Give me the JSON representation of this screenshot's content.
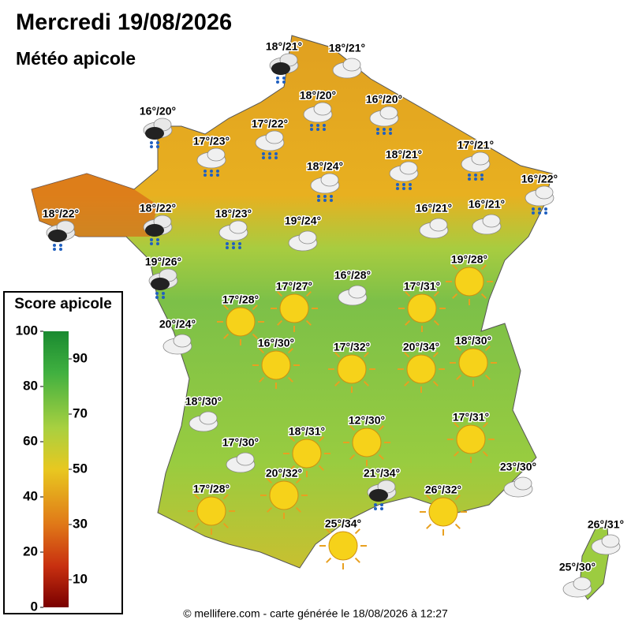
{
  "header": {
    "title": "Mercredi 19/08/2026",
    "subtitle": "Météo apicole"
  },
  "legend": {
    "title": "Score apicole",
    "ticks": [
      0,
      10,
      20,
      30,
      40,
      50,
      60,
      70,
      80,
      90,
      100
    ]
  },
  "stations": [
    {
      "label": "18°/21°",
      "icon": "storm"
    },
    {
      "label": "18°/21°",
      "icon": "cloud"
    },
    {
      "label": "18°/20°",
      "icon": "rain"
    },
    {
      "label": "16°/20°",
      "icon": "rain"
    },
    {
      "label": "16°/20°",
      "icon": "storm"
    },
    {
      "label": "17°/22°",
      "icon": "rain"
    },
    {
      "label": "17°/23°",
      "icon": "rain"
    },
    {
      "label": "17°/21°",
      "icon": "rain"
    },
    {
      "label": "18°/21°",
      "icon": "rain"
    },
    {
      "label": "18°/24°",
      "icon": "rain"
    },
    {
      "label": "16°/22°",
      "icon": "rain"
    },
    {
      "label": "18°/22°",
      "icon": "storm"
    },
    {
      "label": "18°/22°",
      "icon": "storm"
    },
    {
      "label": "18°/23°",
      "icon": "rain"
    },
    {
      "label": "19°/24°",
      "icon": "cloud"
    },
    {
      "label": "16°/21°",
      "icon": "cloud"
    },
    {
      "label": "16°/21°",
      "icon": "cloud"
    },
    {
      "label": "19°/26°",
      "icon": "storm"
    },
    {
      "label": "19°/28°",
      "icon": "sun"
    },
    {
      "label": "16°/28°",
      "icon": "cloud"
    },
    {
      "label": "17°/27°",
      "icon": "sun"
    },
    {
      "label": "17°/31°",
      "icon": "sun"
    },
    {
      "label": "17°/28°",
      "icon": "sun"
    },
    {
      "label": "20°/24°",
      "icon": "cloud"
    },
    {
      "label": "16°/30°",
      "icon": "sun"
    },
    {
      "label": "17°/32°",
      "icon": "sun"
    },
    {
      "label": "20°/34°",
      "icon": "sun"
    },
    {
      "label": "18°/30°",
      "icon": "sun"
    },
    {
      "label": "18°/30°",
      "icon": "cloud"
    },
    {
      "label": "17°/31°",
      "icon": "sun"
    },
    {
      "label": "12°/30°",
      "icon": "sun"
    },
    {
      "label": "18°/31°",
      "icon": "sun"
    },
    {
      "label": "17°/30°",
      "icon": "cloud"
    },
    {
      "label": "23°/30°",
      "icon": "cloud"
    },
    {
      "label": "20°/32°",
      "icon": "sun"
    },
    {
      "label": "21°/34°",
      "icon": "storm"
    },
    {
      "label": "26°/32°",
      "icon": "sun"
    },
    {
      "label": "17°/28°",
      "icon": "sun"
    },
    {
      "label": "25°/34°",
      "icon": "sun"
    },
    {
      "label": "26°/31°",
      "icon": "cloud"
    },
    {
      "label": "25°/30°",
      "icon": "cloud"
    }
  ],
  "footer": "© mellifere.com - carte générée le 18/08/2026 à 12:27"
}
